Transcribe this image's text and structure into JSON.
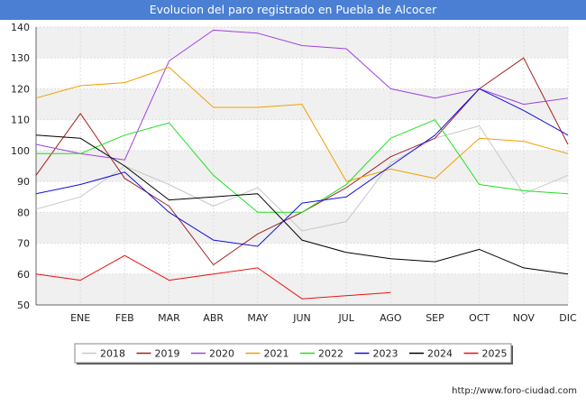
{
  "title": "Evolucion del paro registrado en Puebla de Alcocer",
  "credit": "http://www.foro-ciudad.com",
  "chart_data": {
    "type": "line",
    "title": "Evolucion del paro registrado en Puebla de Alcocer",
    "xlabel": "",
    "ylabel": "",
    "categories": [
      "",
      "ENE",
      "FEB",
      "MAR",
      "ABR",
      "MAY",
      "JUN",
      "JUL",
      "AGO",
      "SEP",
      "OCT",
      "NOV",
      "DIC"
    ],
    "ylim": [
      50,
      140
    ],
    "yticks": [
      50,
      60,
      70,
      80,
      90,
      100,
      110,
      120,
      130,
      140
    ],
    "grid": true,
    "legend": "bottom",
    "series": [
      {
        "name": "2018",
        "color": "#c8c8c8",
        "values": [
          81,
          85,
          95,
          89,
          82,
          88,
          74,
          77,
          96,
          104,
          108,
          86,
          92
        ]
      },
      {
        "name": "2019",
        "color": "#a02020",
        "values": [
          92,
          112,
          91,
          82,
          63,
          73,
          80,
          88,
          98,
          104,
          120,
          130,
          102
        ]
      },
      {
        "name": "2020",
        "color": "#a040e0",
        "values": [
          102,
          99,
          97,
          129,
          139,
          138,
          134,
          133,
          120,
          117,
          120,
          115,
          117
        ]
      },
      {
        "name": "2021",
        "color": "#f0a000",
        "values": [
          117,
          121,
          122,
          127,
          114,
          114,
          115,
          90,
          94,
          91,
          104,
          103,
          99
        ]
      },
      {
        "name": "2022",
        "color": "#20e020",
        "values": [
          99,
          99,
          105,
          109,
          92,
          80,
          80,
          89,
          104,
          110,
          89,
          87,
          86
        ]
      },
      {
        "name": "2023",
        "color": "#1010e0",
        "values": [
          86,
          89,
          93,
          80,
          71,
          69,
          83,
          85,
          95,
          105,
          120,
          113,
          105
        ]
      },
      {
        "name": "2024",
        "color": "#000000",
        "values": [
          105,
          104,
          95,
          84,
          85,
          86,
          71,
          67,
          65,
          64,
          68,
          62,
          60
        ]
      },
      {
        "name": "2025",
        "color": "#ee1010",
        "values": [
          60,
          58,
          66,
          58,
          60,
          62,
          52,
          53,
          54,
          null,
          null,
          null,
          null
        ]
      }
    ]
  }
}
